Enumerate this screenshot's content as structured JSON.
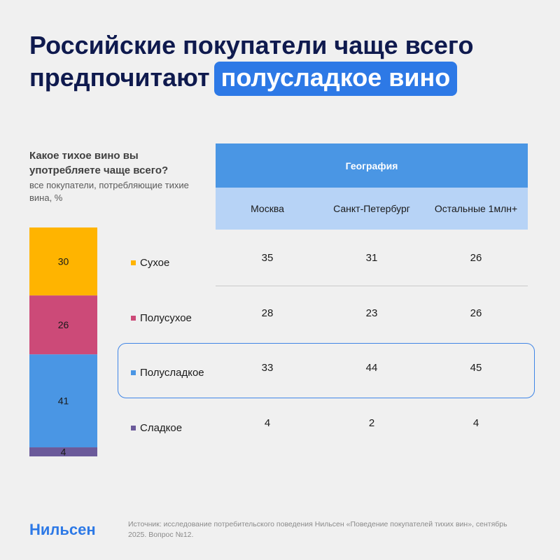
{
  "title": {
    "line1": "Российские покупатели чаще всего",
    "line2_prefix": "предпочитают",
    "line2_highlight": "полусладкое вино"
  },
  "question": {
    "text": "Какое тихое вино вы употребляете чаще всего?",
    "subtitle": "все покупатели, потребляющие тихие вина, %"
  },
  "table": {
    "header": "География",
    "columns": [
      "Москва",
      "Санкт-Петербург",
      "Остальные 1млн+"
    ],
    "highlighted_row": "Полусладкое"
  },
  "chart_data": [
    {
      "type": "bar",
      "stacked": true,
      "categories": [
        "Сухое",
        "Полусухое",
        "Полусладкое",
        "Сладкое"
      ],
      "values": [
        30,
        26,
        41,
        4
      ],
      "colors": [
        "#ffb400",
        "#cc4a78",
        "#4a96e4",
        "#6b5a9a"
      ]
    },
    {
      "type": "table",
      "columns": [
        "Москва",
        "Санкт-Петербург",
        "Остальные 1млн+"
      ],
      "rows": [
        {
          "label": "Сухое",
          "values": [
            35,
            31,
            26
          ]
        },
        {
          "label": "Полусухое",
          "values": [
            28,
            23,
            26
          ]
        },
        {
          "label": "Полусладкое",
          "values": [
            33,
            44,
            45
          ]
        },
        {
          "label": "Сладкое",
          "values": [
            4,
            2,
            4
          ]
        }
      ]
    }
  ],
  "footer": {
    "logo": "Нильсен",
    "source": "Источник: исследование потребительского поведения Нильсен «Поведение покупателей тихих вин», сентябрь 2025. Вопрос №12."
  }
}
